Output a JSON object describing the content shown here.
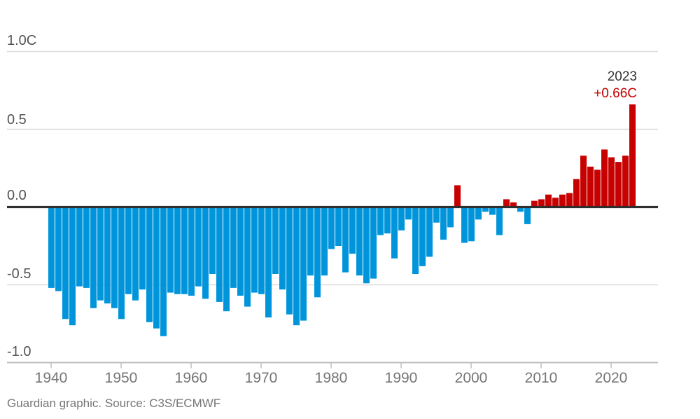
{
  "chart_data": {
    "type": "bar",
    "title": "",
    "unit": "C",
    "ylim": [
      -1.0,
      1.0
    ],
    "grid": true,
    "x": [
      1940,
      1941,
      1942,
      1943,
      1944,
      1945,
      1946,
      1947,
      1948,
      1949,
      1950,
      1951,
      1952,
      1953,
      1954,
      1955,
      1956,
      1957,
      1958,
      1959,
      1960,
      1961,
      1962,
      1963,
      1964,
      1965,
      1966,
      1967,
      1968,
      1969,
      1970,
      1971,
      1972,
      1973,
      1974,
      1975,
      1976,
      1977,
      1978,
      1979,
      1980,
      1981,
      1982,
      1983,
      1984,
      1985,
      1986,
      1987,
      1988,
      1989,
      1990,
      1991,
      1992,
      1993,
      1994,
      1995,
      1996,
      1997,
      1998,
      1999,
      2000,
      2001,
      2002,
      2003,
      2004,
      2005,
      2006,
      2007,
      2008,
      2009,
      2010,
      2011,
      2012,
      2013,
      2014,
      2015,
      2016,
      2017,
      2018,
      2019,
      2020,
      2021,
      2022,
      2023
    ],
    "values": [
      -0.52,
      -0.54,
      -0.72,
      -0.76,
      -0.51,
      -0.52,
      -0.65,
      -0.6,
      -0.62,
      -0.65,
      -0.72,
      -0.56,
      -0.6,
      -0.53,
      -0.74,
      -0.78,
      -0.83,
      -0.55,
      -0.56,
      -0.56,
      -0.57,
      -0.51,
      -0.59,
      -0.43,
      -0.61,
      -0.67,
      -0.52,
      -0.57,
      -0.64,
      -0.55,
      -0.56,
      -0.71,
      -0.43,
      -0.53,
      -0.69,
      -0.76,
      -0.73,
      -0.44,
      -0.58,
      -0.44,
      -0.27,
      -0.25,
      -0.42,
      -0.3,
      -0.44,
      -0.49,
      -0.46,
      -0.18,
      -0.17,
      -0.33,
      -0.15,
      -0.08,
      -0.43,
      -0.38,
      -0.32,
      -0.1,
      -0.21,
      -0.13,
      0.14,
      -0.23,
      -0.22,
      -0.08,
      -0.03,
      -0.05,
      -0.18,
      0.05,
      0.03,
      -0.03,
      -0.11,
      0.04,
      0.05,
      0.08,
      0.06,
      0.08,
      0.09,
      0.18,
      0.33,
      0.26,
      0.24,
      0.37,
      0.32,
      0.29,
      0.33,
      0.66
    ],
    "y_ticks": [
      {
        "label": "1.0C",
        "value": 1.0
      },
      {
        "label": "0.5",
        "value": 0.5
      },
      {
        "label": "0.0",
        "value": 0.0
      },
      {
        "label": "-0.5",
        "value": -0.5
      },
      {
        "label": "-1.0",
        "value": -1.0
      }
    ],
    "x_ticks": [
      {
        "label": "1940",
        "value": 1940
      },
      {
        "label": "1950",
        "value": 1950
      },
      {
        "label": "1960",
        "value": 1960
      },
      {
        "label": "1970",
        "value": 1970
      },
      {
        "label": "1980",
        "value": 1980
      },
      {
        "label": "1990",
        "value": 1990
      },
      {
        "label": "2000",
        "value": 2000
      },
      {
        "label": "2010",
        "value": 2010
      },
      {
        "label": "2020",
        "value": 2020
      }
    ],
    "annotation": {
      "year": "2023",
      "value": "+0.66C"
    },
    "colors": {
      "positive": "#c70000",
      "negative": "#0095db",
      "zero_line": "#2f2f2f",
      "gridline": "#dcdcdc",
      "axis": "#bdbdbd",
      "annotation_year": "#333333",
      "annotation_value": "#c70000"
    },
    "legend_position": "none"
  },
  "footer": {
    "credit": "Guardian graphic. Source: C3S/ECMWF"
  }
}
